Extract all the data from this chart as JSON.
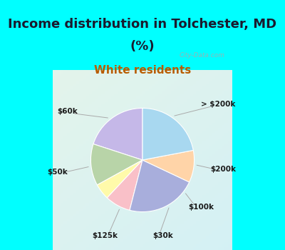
{
  "title_line1": "Income distribution in Tolchester, MD",
  "title_line2": "(%)",
  "subtitle": "White residents",
  "title_fontsize": 13,
  "subtitle_fontsize": 11,
  "title_color": "#1a1a2e",
  "subtitle_color": "#b85c00",
  "bg_color": "#00ffff",
  "labels": [
    "> $200k",
    "$200k",
    "$100k",
    "$30k",
    "$125k",
    "$50k",
    "$60k"
  ],
  "values": [
    20,
    13,
    5,
    8,
    22,
    10,
    22
  ],
  "colors": [
    "#c5b8e8",
    "#b8d4a8",
    "#fffaaa",
    "#f9c0c8",
    "#a8aedc",
    "#ffd4a8",
    "#a8d8f0"
  ],
  "startangle": 90,
  "chart_bg_colors": [
    "#e8f5e8",
    "#d0f0f0"
  ],
  "watermark": "City-Data.com"
}
